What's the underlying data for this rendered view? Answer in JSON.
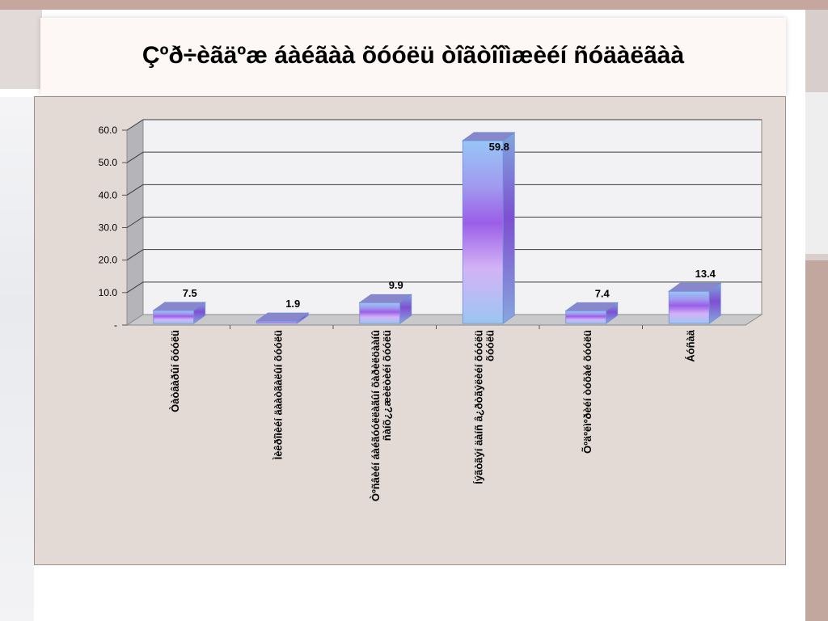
{
  "slide": {
    "title": "Çºð÷èãäºæ áàéãàà õóóëü òîãòîîìæèéí ñóäàëãàà"
  },
  "chart_data": {
    "type": "bar",
    "title": "",
    "xlabel": "",
    "ylabel": "",
    "ylim": [
      0,
      60
    ],
    "yticks": [
      "-",
      "10.0",
      "20.0",
      "30.0",
      "40.0",
      "50.0",
      "60.0"
    ],
    "grid": true,
    "legend": "none",
    "categories": [
      [
        "Òàòâàðûí õóóëü"
      ],
      [
        "Ìèêðîìèéí äààòãàëûí õóóëü"
      ],
      [
        "Òºñâèéí áàéãóóëëàãûí õàðèëöààíû",
        "ñàíõ¿¿æèëòèéí õóóëü"
      ],
      [
        "Íýãòãýí äàíñ â¿ðòãýëèéí õóóëü",
        "õóóëü"
      ],
      [
        "Õºäºëìºðèéí òóõàé õóóëü"
      ],
      [
        "Áóñàä"
      ]
    ],
    "values": [
      7.5,
      1.9,
      9.9,
      59.8,
      7.4,
      13.4
    ],
    "data_labels": [
      "7.5",
      "1.9",
      "9.9",
      "59.8",
      "7.4",
      "13.4"
    ],
    "colors": {
      "bar_top": "#8a86cc",
      "bar_side": "#7d6fd0",
      "floor": "#c9c9cb",
      "back_wall": "#f2f2f4",
      "grid": "#3c3c3c"
    }
  }
}
